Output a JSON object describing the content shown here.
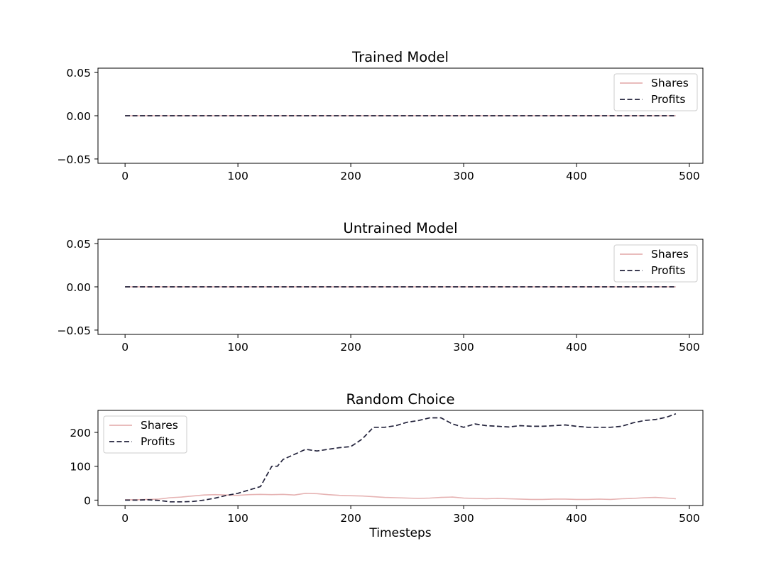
{
  "chart_data": [
    {
      "type": "line",
      "title": "Trained Model",
      "xlabel": "",
      "ylabel": "",
      "xlim": [
        -24,
        512
      ],
      "ylim": [
        -0.055,
        0.055
      ],
      "xticks": [
        0,
        100,
        200,
        300,
        400,
        500
      ],
      "yticks": [
        -0.05,
        0.0,
        0.05
      ],
      "ytick_labels": [
        "−0.05",
        "0.00",
        "0.05"
      ],
      "legend_position": "top-right",
      "series": [
        {
          "name": "Shares",
          "color": "#e6b3b3",
          "style": "solid",
          "x": [
            0,
            488
          ],
          "y": [
            0,
            0
          ]
        },
        {
          "name": "Profits",
          "color": "#22223b",
          "style": "dashed",
          "x": [
            0,
            488
          ],
          "y": [
            0,
            0
          ]
        }
      ]
    },
    {
      "type": "line",
      "title": "Untrained Model",
      "xlabel": "",
      "ylabel": "",
      "xlim": [
        -24,
        512
      ],
      "ylim": [
        -0.055,
        0.055
      ],
      "xticks": [
        0,
        100,
        200,
        300,
        400,
        500
      ],
      "yticks": [
        -0.05,
        0.0,
        0.05
      ],
      "ytick_labels": [
        "−0.05",
        "0.00",
        "0.05"
      ],
      "legend_position": "top-right",
      "series": [
        {
          "name": "Shares",
          "color": "#e6b3b3",
          "style": "solid",
          "x": [
            0,
            488
          ],
          "y": [
            0,
            0
          ]
        },
        {
          "name": "Profits",
          "color": "#22223b",
          "style": "dashed",
          "x": [
            0,
            488
          ],
          "y": [
            0,
            0
          ]
        }
      ]
    },
    {
      "type": "line",
      "title": "Random Choice",
      "xlabel": "Timesteps",
      "ylabel": "",
      "xlim": [
        -24,
        512
      ],
      "ylim": [
        -16,
        265
      ],
      "xticks": [
        0,
        100,
        200,
        300,
        400,
        500
      ],
      "yticks": [
        0,
        100,
        200
      ],
      "ytick_labels": [
        "0",
        "100",
        "200"
      ],
      "legend_position": "top-left",
      "series": [
        {
          "name": "Shares",
          "color": "#e6b3b3",
          "style": "solid",
          "x": [
            0,
            10,
            20,
            30,
            40,
            50,
            60,
            70,
            80,
            90,
            100,
            110,
            120,
            130,
            140,
            150,
            160,
            170,
            180,
            190,
            200,
            210,
            220,
            230,
            240,
            250,
            260,
            270,
            280,
            290,
            300,
            310,
            320,
            330,
            340,
            350,
            360,
            370,
            380,
            390,
            400,
            410,
            420,
            430,
            440,
            450,
            460,
            470,
            480,
            488
          ],
          "y": [
            1,
            1,
            2,
            3,
            7,
            9,
            12,
            15,
            16,
            15,
            14,
            16,
            17,
            16,
            17,
            15,
            20,
            19,
            16,
            14,
            13,
            12,
            10,
            8,
            7,
            6,
            5,
            6,
            8,
            9,
            6,
            5,
            4,
            5,
            4,
            3,
            2,
            2,
            3,
            3,
            2,
            2,
            3,
            2,
            4,
            5,
            7,
            8,
            6,
            4
          ]
        },
        {
          "name": "Profits",
          "color": "#22223b",
          "style": "dashed",
          "x": [
            0,
            10,
            20,
            30,
            40,
            50,
            60,
            70,
            80,
            90,
            100,
            110,
            115,
            120,
            125,
            130,
            135,
            140,
            150,
            160,
            170,
            180,
            190,
            200,
            210,
            220,
            230,
            240,
            250,
            260,
            270,
            280,
            290,
            300,
            310,
            320,
            330,
            340,
            350,
            360,
            370,
            380,
            390,
            400,
            410,
            420,
            430,
            440,
            450,
            460,
            470,
            480,
            488
          ],
          "y": [
            0,
            0,
            1,
            -1,
            -5,
            -5,
            -4,
            0,
            6,
            14,
            20,
            30,
            35,
            40,
            70,
            100,
            100,
            120,
            135,
            150,
            145,
            150,
            155,
            158,
            180,
            215,
            215,
            220,
            230,
            235,
            243,
            243,
            225,
            215,
            225,
            220,
            218,
            216,
            220,
            218,
            218,
            220,
            222,
            218,
            215,
            215,
            215,
            218,
            228,
            235,
            238,
            245,
            255
          ]
        }
      ]
    }
  ]
}
